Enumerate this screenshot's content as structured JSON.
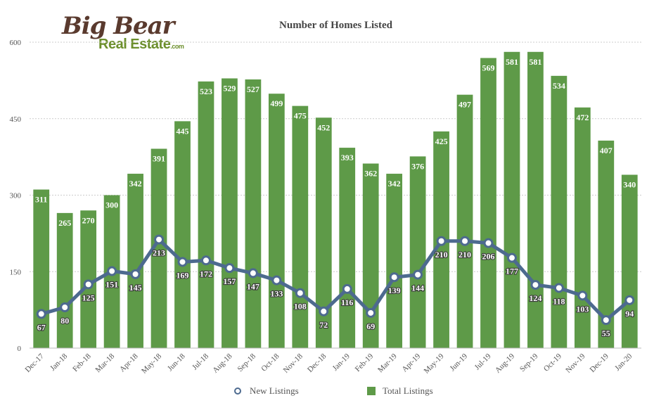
{
  "logo": {
    "line1": "Big Bear",
    "line2": "Real Estate",
    "suffix": ".com"
  },
  "chart_data": {
    "type": "bar",
    "title": "Number of Homes Listed",
    "xlabel": "",
    "ylabel": "",
    "ylim": [
      0,
      600
    ],
    "yticks": [
      0,
      150,
      300,
      450,
      600
    ],
    "grid": true,
    "legend_position": "bottom",
    "categories": [
      "Dec-17",
      "Jan-18",
      "Feb-18",
      "Mar-18",
      "Apr-18",
      "May-18",
      "Jun-18",
      "Jul-18",
      "Aug-18",
      "Sep-18",
      "Oct-18",
      "Nov-18",
      "Dec-18",
      "Jan-19",
      "Feb-19",
      "Mar-19",
      "Apr-19",
      "May-19",
      "Jun-19",
      "Jul-19",
      "Aug-19",
      "Sep-19",
      "Oct-19",
      "Nov-19",
      "Dec-19",
      "Jan-20"
    ],
    "series": [
      {
        "name": "Total Listings",
        "type": "bar",
        "color": "#5e9a48",
        "values": [
          311,
          265,
          270,
          300,
          342,
          391,
          445,
          523,
          529,
          527,
          499,
          475,
          452,
          393,
          362,
          342,
          376,
          425,
          497,
          569,
          581,
          581,
          534,
          472,
          407,
          340
        ]
      },
      {
        "name": "New Listings",
        "type": "line",
        "color": "#4d6a8f",
        "values": [
          67,
          80,
          125,
          151,
          145,
          213,
          169,
          172,
          157,
          147,
          133,
          108,
          72,
          116,
          69,
          139,
          144,
          210,
          210,
          206,
          177,
          124,
          118,
          103,
          55,
          94
        ]
      }
    ]
  }
}
